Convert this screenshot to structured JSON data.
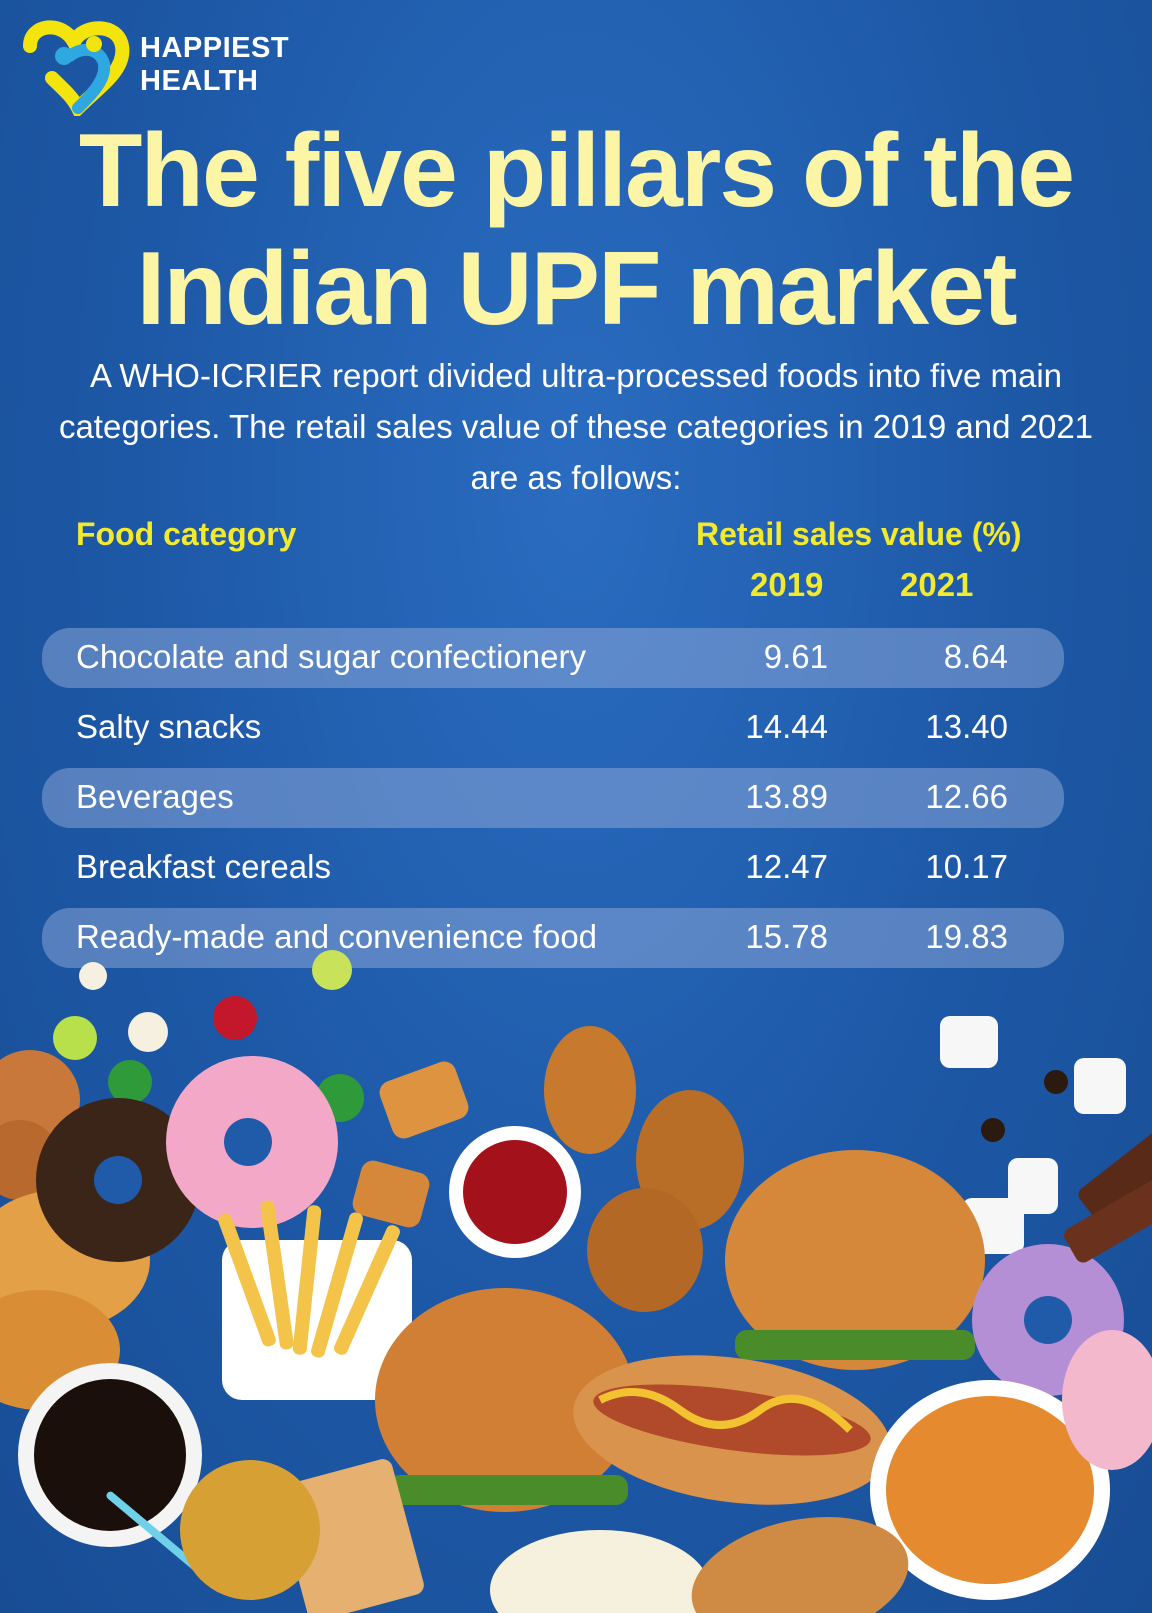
{
  "brand": {
    "line1": "HAPPIEST",
    "line2": "HEALTH"
  },
  "chart_data": {
    "type": "table",
    "title": "The five pillars of the Indian UPF market",
    "title_lines": [
      "The five pillars of the",
      "Indian UPF market"
    ],
    "subtitle": "A WHO-ICRIER report divided ultra-processed foods into five main categories. The retail sales value of these categories in 2019 and 2021 are as follows:",
    "column_header_category": "Food category",
    "column_header_value": "Retail sales value (%)",
    "years": [
      "2019",
      "2021"
    ],
    "rows": [
      {
        "category": "Chocolate and sugar confectionery",
        "v2019": "9.61",
        "v2021": "8.64"
      },
      {
        "category": "Salty snacks",
        "v2019": "14.44",
        "v2021": "13.40"
      },
      {
        "category": "Beverages",
        "v2019": "13.89",
        "v2021": "12.66"
      },
      {
        "category": "Breakfast cereals",
        "v2019": "12.47",
        "v2021": "10.17"
      },
      {
        "category": "Ready-made and convenience food",
        "v2019": "15.78",
        "v2021": "19.83"
      }
    ]
  },
  "colors": {
    "background": "#1f5ba8",
    "title": "#fdf5a6",
    "header": "#f3ea2e",
    "row_band": "#a0b4e1"
  }
}
